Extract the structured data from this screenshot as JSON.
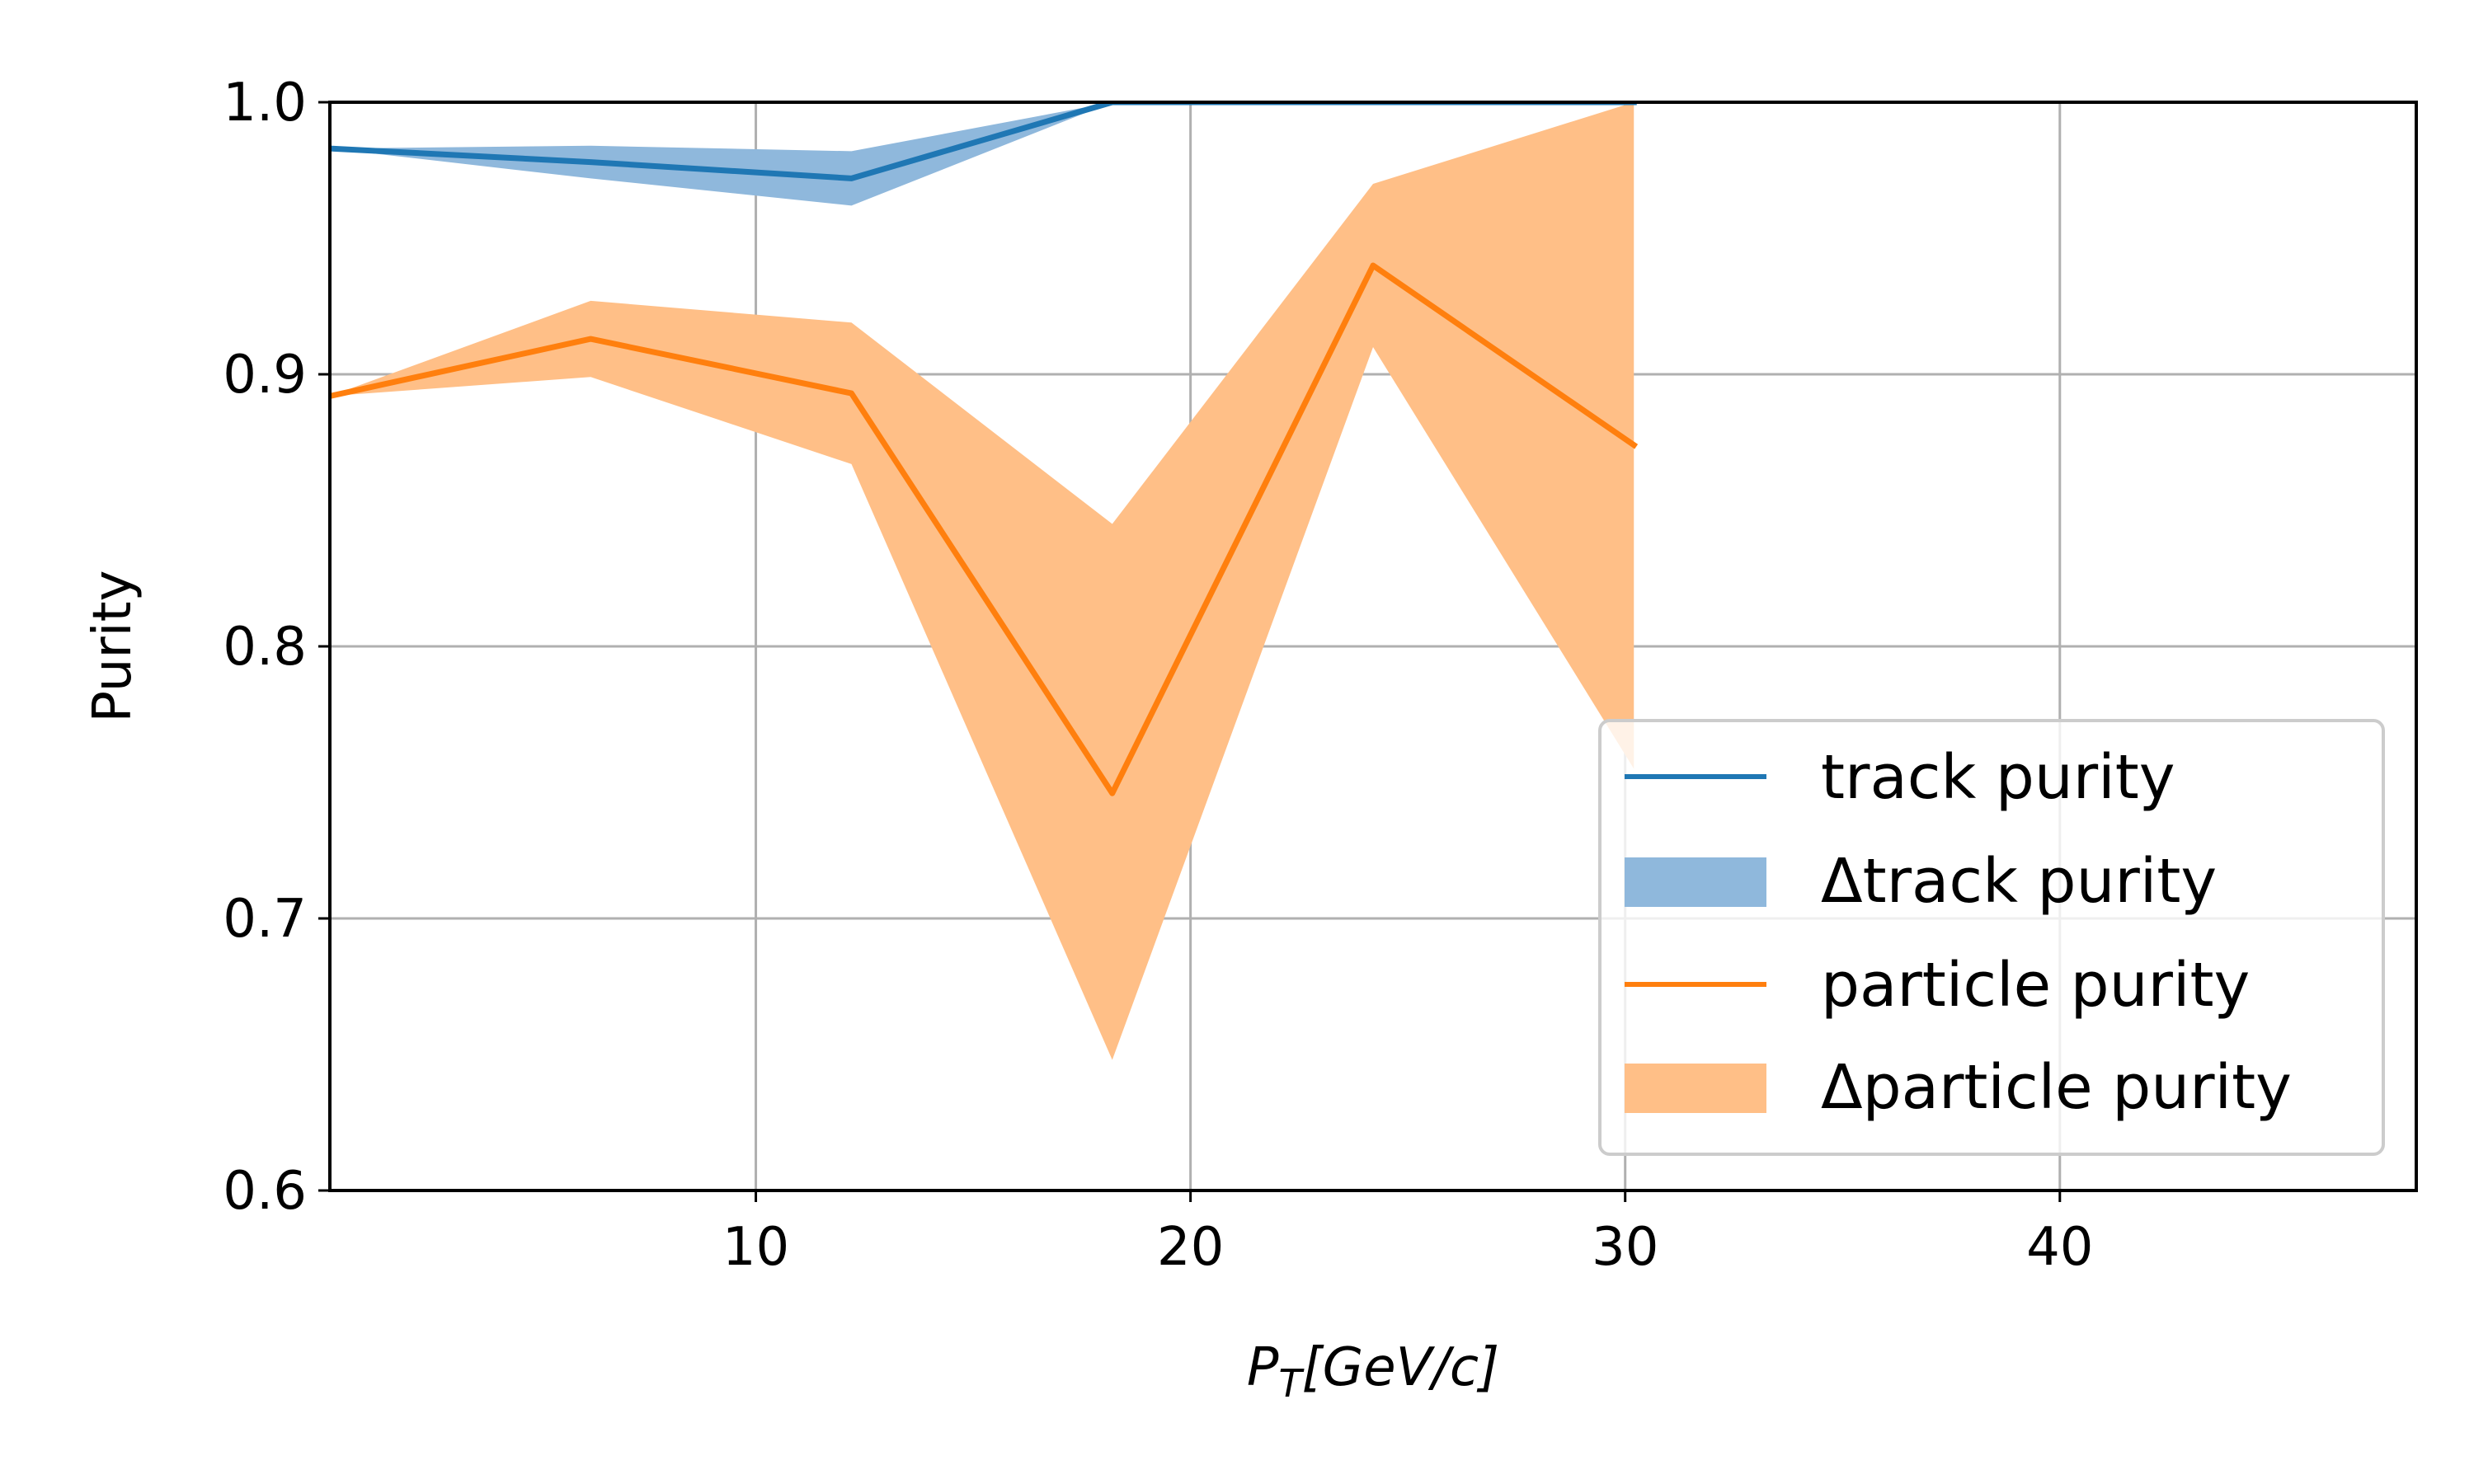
{
  "chart_data": {
    "type": "line",
    "title": "",
    "xlabel": {
      "main": "P",
      "sub": "T",
      "rest": "[GeV/c]"
    },
    "ylabel": "Purity",
    "xlim": [
      0.2,
      48.2
    ],
    "ylim": [
      0.6,
      1.0
    ],
    "xticks": [
      10,
      20,
      30,
      40
    ],
    "xtick_labels": [
      "10",
      "20",
      "30",
      "40"
    ],
    "yticks": [
      0.6,
      0.7,
      0.8,
      0.9,
      1.0
    ],
    "ytick_labels": [
      "0.6",
      "0.7",
      "0.8",
      "0.9",
      "1.0"
    ],
    "grid": true,
    "legend_position": "lower-right",
    "x": [
      0.2,
      6.2,
      12.2,
      18.2,
      24.2,
      30.2
    ],
    "series": [
      {
        "name": "track purity",
        "band_name": "Δtrack purity",
        "color": "#1f77b4",
        "band_color": "#8fb8dc",
        "values": [
          0.983,
          0.978,
          0.972,
          1.0,
          1.0,
          1.0
        ],
        "lower": [
          0.983,
          0.972,
          0.962,
          1.0,
          1.0,
          1.0
        ],
        "upper": [
          0.983,
          0.984,
          0.982,
          1.0,
          1.0,
          1.0
        ]
      },
      {
        "name": "particle purity",
        "band_name": "Δparticle purity",
        "color": "#ff7f0e",
        "band_color": "#ffbf87",
        "values": [
          0.892,
          0.913,
          0.893,
          0.746,
          0.94,
          0.874
        ],
        "lower": [
          0.892,
          0.899,
          0.867,
          0.648,
          0.91,
          0.755
        ],
        "upper": [
          0.892,
          0.927,
          0.919,
          0.845,
          0.97,
          1.0
        ]
      }
    ]
  }
}
